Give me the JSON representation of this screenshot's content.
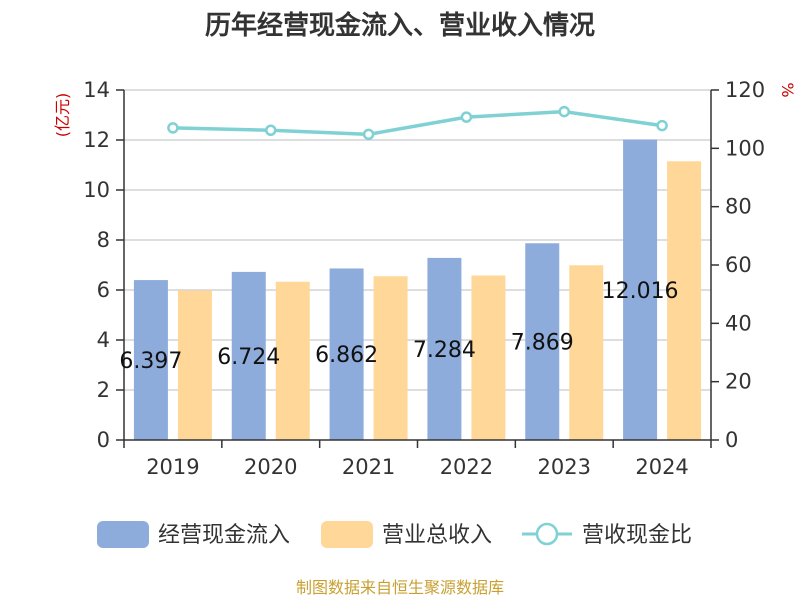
{
  "chart_data": {
    "type": "bar",
    "title": "历年经营现金流入、营业收入情况",
    "categories": [
      "2019",
      "2020",
      "2021",
      "2022",
      "2023",
      "2024"
    ],
    "y_left": {
      "unit": "(亿元)",
      "min": 0,
      "max": 14,
      "ticks": [
        0,
        2,
        4,
        6,
        8,
        10,
        12,
        14
      ]
    },
    "y_right": {
      "unit": "%",
      "min": 0,
      "max": 120,
      "ticks": [
        0,
        20,
        40,
        60,
        80,
        100,
        120
      ]
    },
    "series": [
      {
        "name": "经营现金流入",
        "type": "bar",
        "axis": "left",
        "color": "#8eacdb",
        "values": [
          6.397,
          6.724,
          6.862,
          7.284,
          7.869,
          12.016
        ],
        "labels": [
          "6.397",
          "6.724",
          "6.862",
          "7.284",
          "7.869",
          "12.016"
        ]
      },
      {
        "name": "营业总收入",
        "type": "bar",
        "axis": "left",
        "color": "#ffd899",
        "values": [
          5.98,
          6.33,
          6.55,
          6.58,
          6.99,
          11.15
        ]
      },
      {
        "name": "营收现金比",
        "type": "line",
        "axis": "right",
        "color": "#7fd1d4",
        "values": [
          107.0,
          106.2,
          104.8,
          110.7,
          112.6,
          107.8
        ]
      }
    ],
    "grid": true,
    "legend": "bottom"
  },
  "source": "制图数据来自恒生聚源数据库"
}
